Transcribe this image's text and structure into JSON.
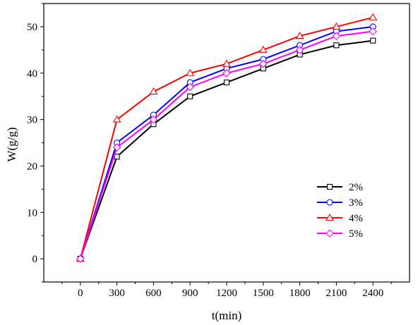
{
  "chart_data": {
    "type": "line",
    "title": "",
    "xlabel": "t(min)",
    "ylabel": "W(g/g)",
    "x": [
      0,
      300,
      600,
      900,
      1200,
      1500,
      1800,
      2100,
      2400
    ],
    "xlim": [
      -300,
      2700
    ],
    "ylim": [
      -5,
      55
    ],
    "xticks": [
      0,
      300,
      600,
      900,
      1200,
      1500,
      1800,
      2100,
      2400
    ],
    "yticks": [
      0,
      10,
      20,
      30,
      40,
      50
    ],
    "grid": false,
    "legend_position": "lower-right",
    "series": [
      {
        "name": "2%",
        "color": "#000000",
        "marker": "square",
        "values": [
          0,
          22,
          29,
          35,
          38,
          41,
          44,
          46,
          47
        ]
      },
      {
        "name": "3%",
        "color": "#0000ff",
        "marker": "circle",
        "values": [
          0,
          25,
          31,
          38,
          41,
          43,
          46,
          49,
          50
        ]
      },
      {
        "name": "4%",
        "color": "#ff0000",
        "marker": "triangle",
        "values": [
          0,
          30,
          36,
          40,
          42,
          45,
          48,
          50,
          52
        ]
      },
      {
        "name": "5%",
        "color": "#ff00ff",
        "marker": "diamond",
        "values": [
          0,
          24,
          30,
          37,
          40,
          42,
          45,
          48,
          49
        ]
      }
    ]
  }
}
